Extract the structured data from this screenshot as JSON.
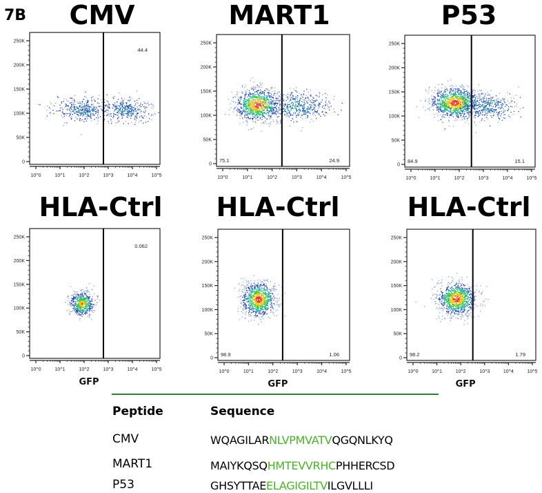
{
  "figure_label": "7B",
  "chart_data": [
    {
      "type": "scatter",
      "subtype": "flow-cytometry-density",
      "title": "CMV",
      "xlabel": "",
      "ylabel": "",
      "x_scale": "log",
      "x_ticks": [
        "10^0",
        "10^1",
        "10^2",
        "10^3",
        "10^4",
        "10^5"
      ],
      "y_ticks": [
        "0",
        "50K",
        "100K",
        "150K",
        "200K",
        "250K"
      ],
      "ylim": [
        0,
        260000
      ],
      "gate_x": 630,
      "gate_values": {
        "right_top": "44.4"
      }
    },
    {
      "type": "scatter",
      "subtype": "flow-cytometry-density",
      "title": "MART1",
      "xlabel": "",
      "ylabel": "",
      "x_scale": "log",
      "x_ticks": [
        "10^0",
        "10^1",
        "10^2",
        "10^3",
        "10^4",
        "10^5"
      ],
      "y_ticks": [
        "0",
        "50K",
        "100K",
        "150K",
        "200K",
        "250K"
      ],
      "ylim": [
        0,
        260000
      ],
      "gate_x": 250,
      "gate_values": {
        "left_bottom": "75.1",
        "right_bottom": "24.9"
      }
    },
    {
      "type": "scatter",
      "subtype": "flow-cytometry-density",
      "title": "P53",
      "xlabel": "",
      "ylabel": "",
      "x_scale": "log",
      "x_ticks": [
        "10^0",
        "10^1",
        "10^2",
        "10^3",
        "10^4",
        "10^5"
      ],
      "y_ticks": [
        "0",
        "50K",
        "100K",
        "150K",
        "200K",
        "250K"
      ],
      "ylim": [
        0,
        260000
      ],
      "gate_x": 320,
      "gate_values": {
        "left_bottom": "84.9",
        "right_bottom": "15.1"
      }
    },
    {
      "type": "scatter",
      "subtype": "flow-cytometry-density",
      "title": "HLA-Ctrl",
      "xlabel": "GFP",
      "ylabel": "",
      "x_scale": "log",
      "x_ticks": [
        "10^0",
        "10^1",
        "10^2",
        "10^3",
        "10^4",
        "10^5"
      ],
      "y_ticks": [
        "0",
        "50K",
        "100K",
        "150K",
        "200K",
        "250K"
      ],
      "ylim": [
        0,
        260000
      ],
      "gate_x": 630,
      "gate_values": {
        "right_top": "0.062"
      }
    },
    {
      "type": "scatter",
      "subtype": "flow-cytometry-density",
      "title": "HLA-Ctrl",
      "xlabel": "GFP",
      "ylabel": "",
      "x_scale": "log",
      "x_ticks": [
        "10^0",
        "10^1",
        "10^2",
        "10^3",
        "10^4",
        "10^5"
      ],
      "y_ticks": [
        "0",
        "50K",
        "100K",
        "150K",
        "200K",
        "250K"
      ],
      "ylim": [
        0,
        260000
      ],
      "gate_x": 250,
      "gate_values": {
        "left_bottom": "98.9",
        "right_bottom": "1.06"
      }
    },
    {
      "type": "scatter",
      "subtype": "flow-cytometry-density",
      "title": "HLA-Ctrl",
      "xlabel": "GFP",
      "ylabel": "",
      "x_scale": "log",
      "x_ticks": [
        "10^0",
        "10^1",
        "10^2",
        "10^3",
        "10^4",
        "10^5"
      ],
      "y_ticks": [
        "0",
        "50K",
        "100K",
        "150K",
        "200K",
        "250K"
      ],
      "ylim": [
        0,
        260000
      ],
      "gate_x": 320,
      "gate_values": {
        "left_bottom": "98.2",
        "right_bottom": "1.79"
      }
    }
  ],
  "table": {
    "headers": [
      "Peptide",
      "Sequence"
    ],
    "rows": [
      {
        "peptide": "CMV",
        "pre": "WQAGILAR",
        "highlight": "NLVPMVATV",
        "post": "QGQNLKYQ"
      },
      {
        "peptide": "MART1",
        "pre": "MAIYKQSQ",
        "highlight": "HMTEVVRHC",
        "post": "PHHERCSD"
      },
      {
        "peptide": "P53",
        "pre": "GHSYTTAE",
        "highlight": "ELAGIGILTV",
        "post": "ILGVLLLI"
      }
    ],
    "line_color": "#2e7d32",
    "highlight_color": "#4caf2a"
  }
}
